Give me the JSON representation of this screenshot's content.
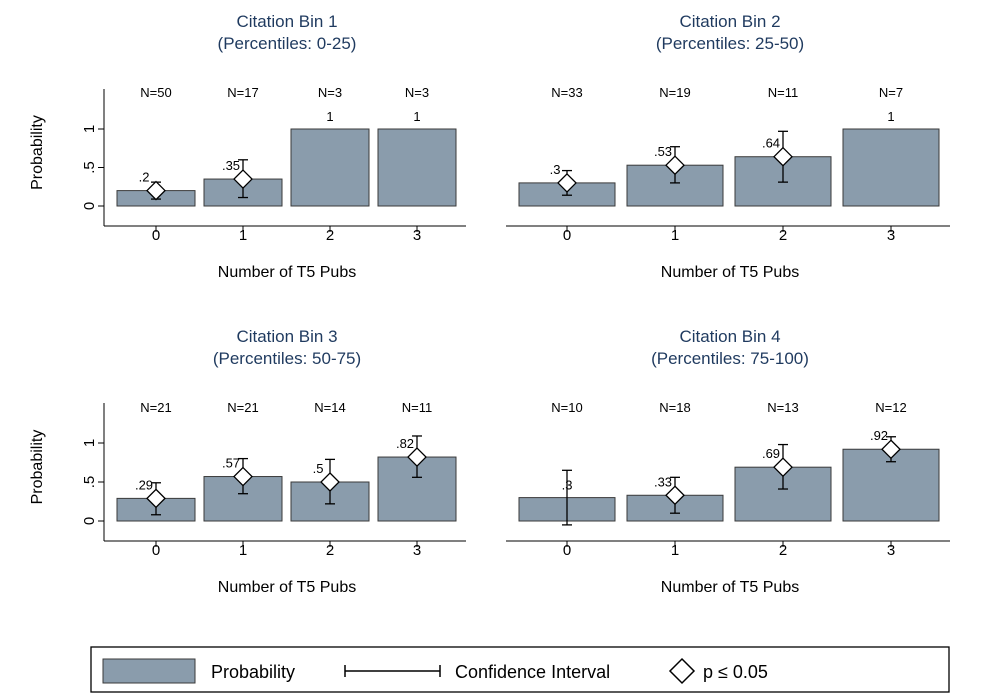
{
  "chart_data": {
    "type": "bar",
    "panels": [
      {
        "title": "Citation Bin 1",
        "subtitle": "(Percentiles: 0-25)",
        "categories": [
          "0",
          "1",
          "2",
          "3"
        ],
        "n_labels": [
          "N=50",
          "N=17",
          "N=3",
          "N=3"
        ],
        "values": [
          0.2,
          0.35,
          1,
          1
        ],
        "value_labels": [
          ".2",
          ".35",
          "1",
          "1"
        ],
        "ci": [
          [
            0.09,
            0.31
          ],
          [
            0.11,
            0.6
          ],
          null,
          null
        ],
        "significant": [
          true,
          true,
          false,
          false
        ],
        "xlabel": "Number of T5 Pubs",
        "ylabel": "Probability"
      },
      {
        "title": "Citation Bin 2",
        "subtitle": "(Percentiles: 25-50)",
        "categories": [
          "0",
          "1",
          "2",
          "3"
        ],
        "n_labels": [
          "N=33",
          "N=19",
          "N=11",
          "N=7"
        ],
        "values": [
          0.3,
          0.53,
          0.64,
          1
        ],
        "value_labels": [
          ".3",
          ".53",
          ".64",
          "1"
        ],
        "ci": [
          [
            0.14,
            0.46
          ],
          [
            0.3,
            0.77
          ],
          [
            0.31,
            0.97
          ],
          null
        ],
        "significant": [
          true,
          true,
          true,
          false
        ],
        "xlabel": "Number of T5 Pubs",
        "ylabel": ""
      },
      {
        "title": "Citation Bin 3",
        "subtitle": "(Percentiles: 50-75)",
        "categories": [
          "0",
          "1",
          "2",
          "3"
        ],
        "n_labels": [
          "N=21",
          "N=21",
          "N=14",
          "N=11"
        ],
        "values": [
          0.29,
          0.57,
          0.5,
          0.82
        ],
        "value_labels": [
          ".29",
          ".57",
          ".5",
          ".82"
        ],
        "ci": [
          [
            0.08,
            0.49
          ],
          [
            0.35,
            0.8
          ],
          [
            0.22,
            0.79
          ],
          [
            0.56,
            1.09
          ]
        ],
        "significant": [
          true,
          true,
          true,
          true
        ],
        "xlabel": "Number of T5 Pubs",
        "ylabel": "Probability"
      },
      {
        "title": "Citation Bin 4",
        "subtitle": "(Percentiles: 75-100)",
        "categories": [
          "0",
          "1",
          "2",
          "3"
        ],
        "n_labels": [
          "N=10",
          "N=18",
          "N=13",
          "N=12"
        ],
        "values": [
          0.3,
          0.33,
          0.69,
          0.92
        ],
        "value_labels": [
          ".3",
          ".33",
          ".69",
          ".92"
        ],
        "ci": [
          [
            -0.05,
            0.65
          ],
          [
            0.1,
            0.56
          ],
          [
            0.41,
            0.98
          ],
          [
            0.76,
            1.08
          ]
        ],
        "significant": [
          false,
          true,
          true,
          true
        ],
        "xlabel": "Number of T5 Pubs",
        "ylabel": ""
      }
    ],
    "yticks": [
      0,
      0.5,
      1
    ],
    "ytick_labels": [
      "0",
      ".5",
      "1"
    ],
    "ylim": [
      0,
      1
    ],
    "legend": {
      "position": "bottom",
      "items": [
        "Probability",
        "Confidence Interval",
        "p  ≤ 0.05"
      ]
    },
    "colors": {
      "bar": "#8a9cac",
      "bar_stroke": "#3a3a3a",
      "title": "#1f3a5f"
    }
  }
}
